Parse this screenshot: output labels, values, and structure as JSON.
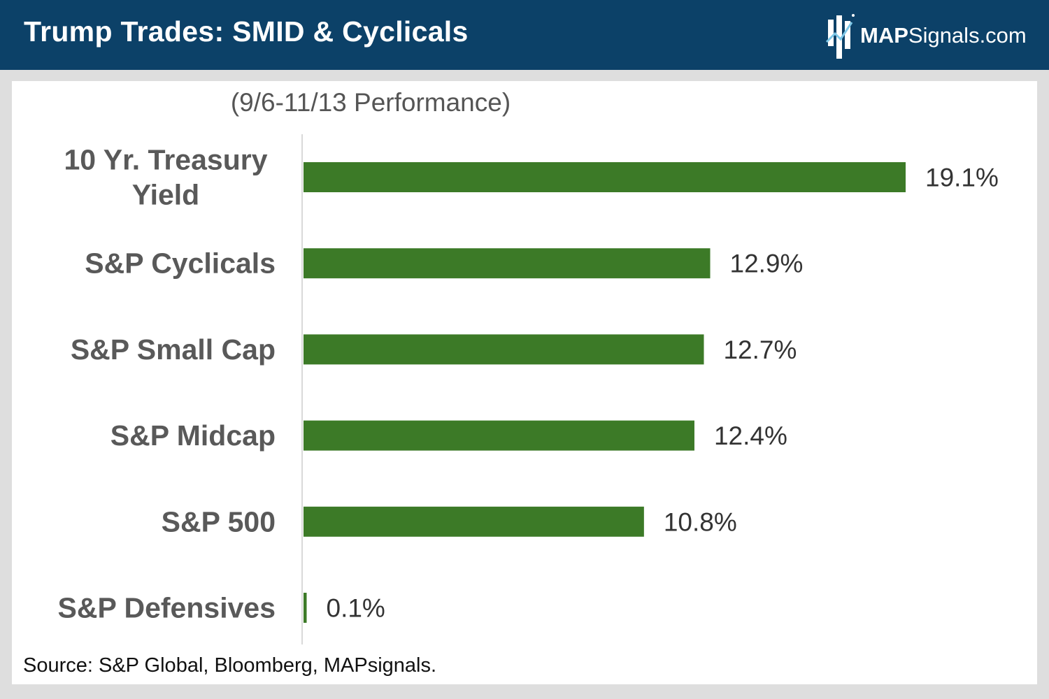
{
  "header": {
    "title": "Trump Trades: SMID & Cyclicals",
    "brand_color": "#0c4168",
    "logo": {
      "strong": "MAP",
      "light": "Signals.com"
    }
  },
  "chart_data": {
    "type": "bar",
    "orientation": "horizontal",
    "subtitle": "(9/6-11/13 Performance)",
    "categories": [
      [
        "10 Yr. Treasury",
        "Yield"
      ],
      [
        "S&P Cyclicals"
      ],
      [
        "S&P Small Cap"
      ],
      [
        "S&P Midcap"
      ],
      [
        "S&P 500"
      ],
      [
        "S&P Defensives"
      ]
    ],
    "values": [
      19.1,
      12.9,
      12.7,
      12.4,
      10.8,
      0.1
    ],
    "data_labels": [
      "19.1%",
      "12.9%",
      "12.7%",
      "12.4%",
      "10.8%",
      "0.1%"
    ],
    "xlim": [
      0,
      19.1
    ],
    "bar_color": "#3c7a27",
    "label_color": "#595959",
    "grid": false
  },
  "footer": {
    "source": "Source: S&P Global, Bloomberg, MAPsignals."
  }
}
